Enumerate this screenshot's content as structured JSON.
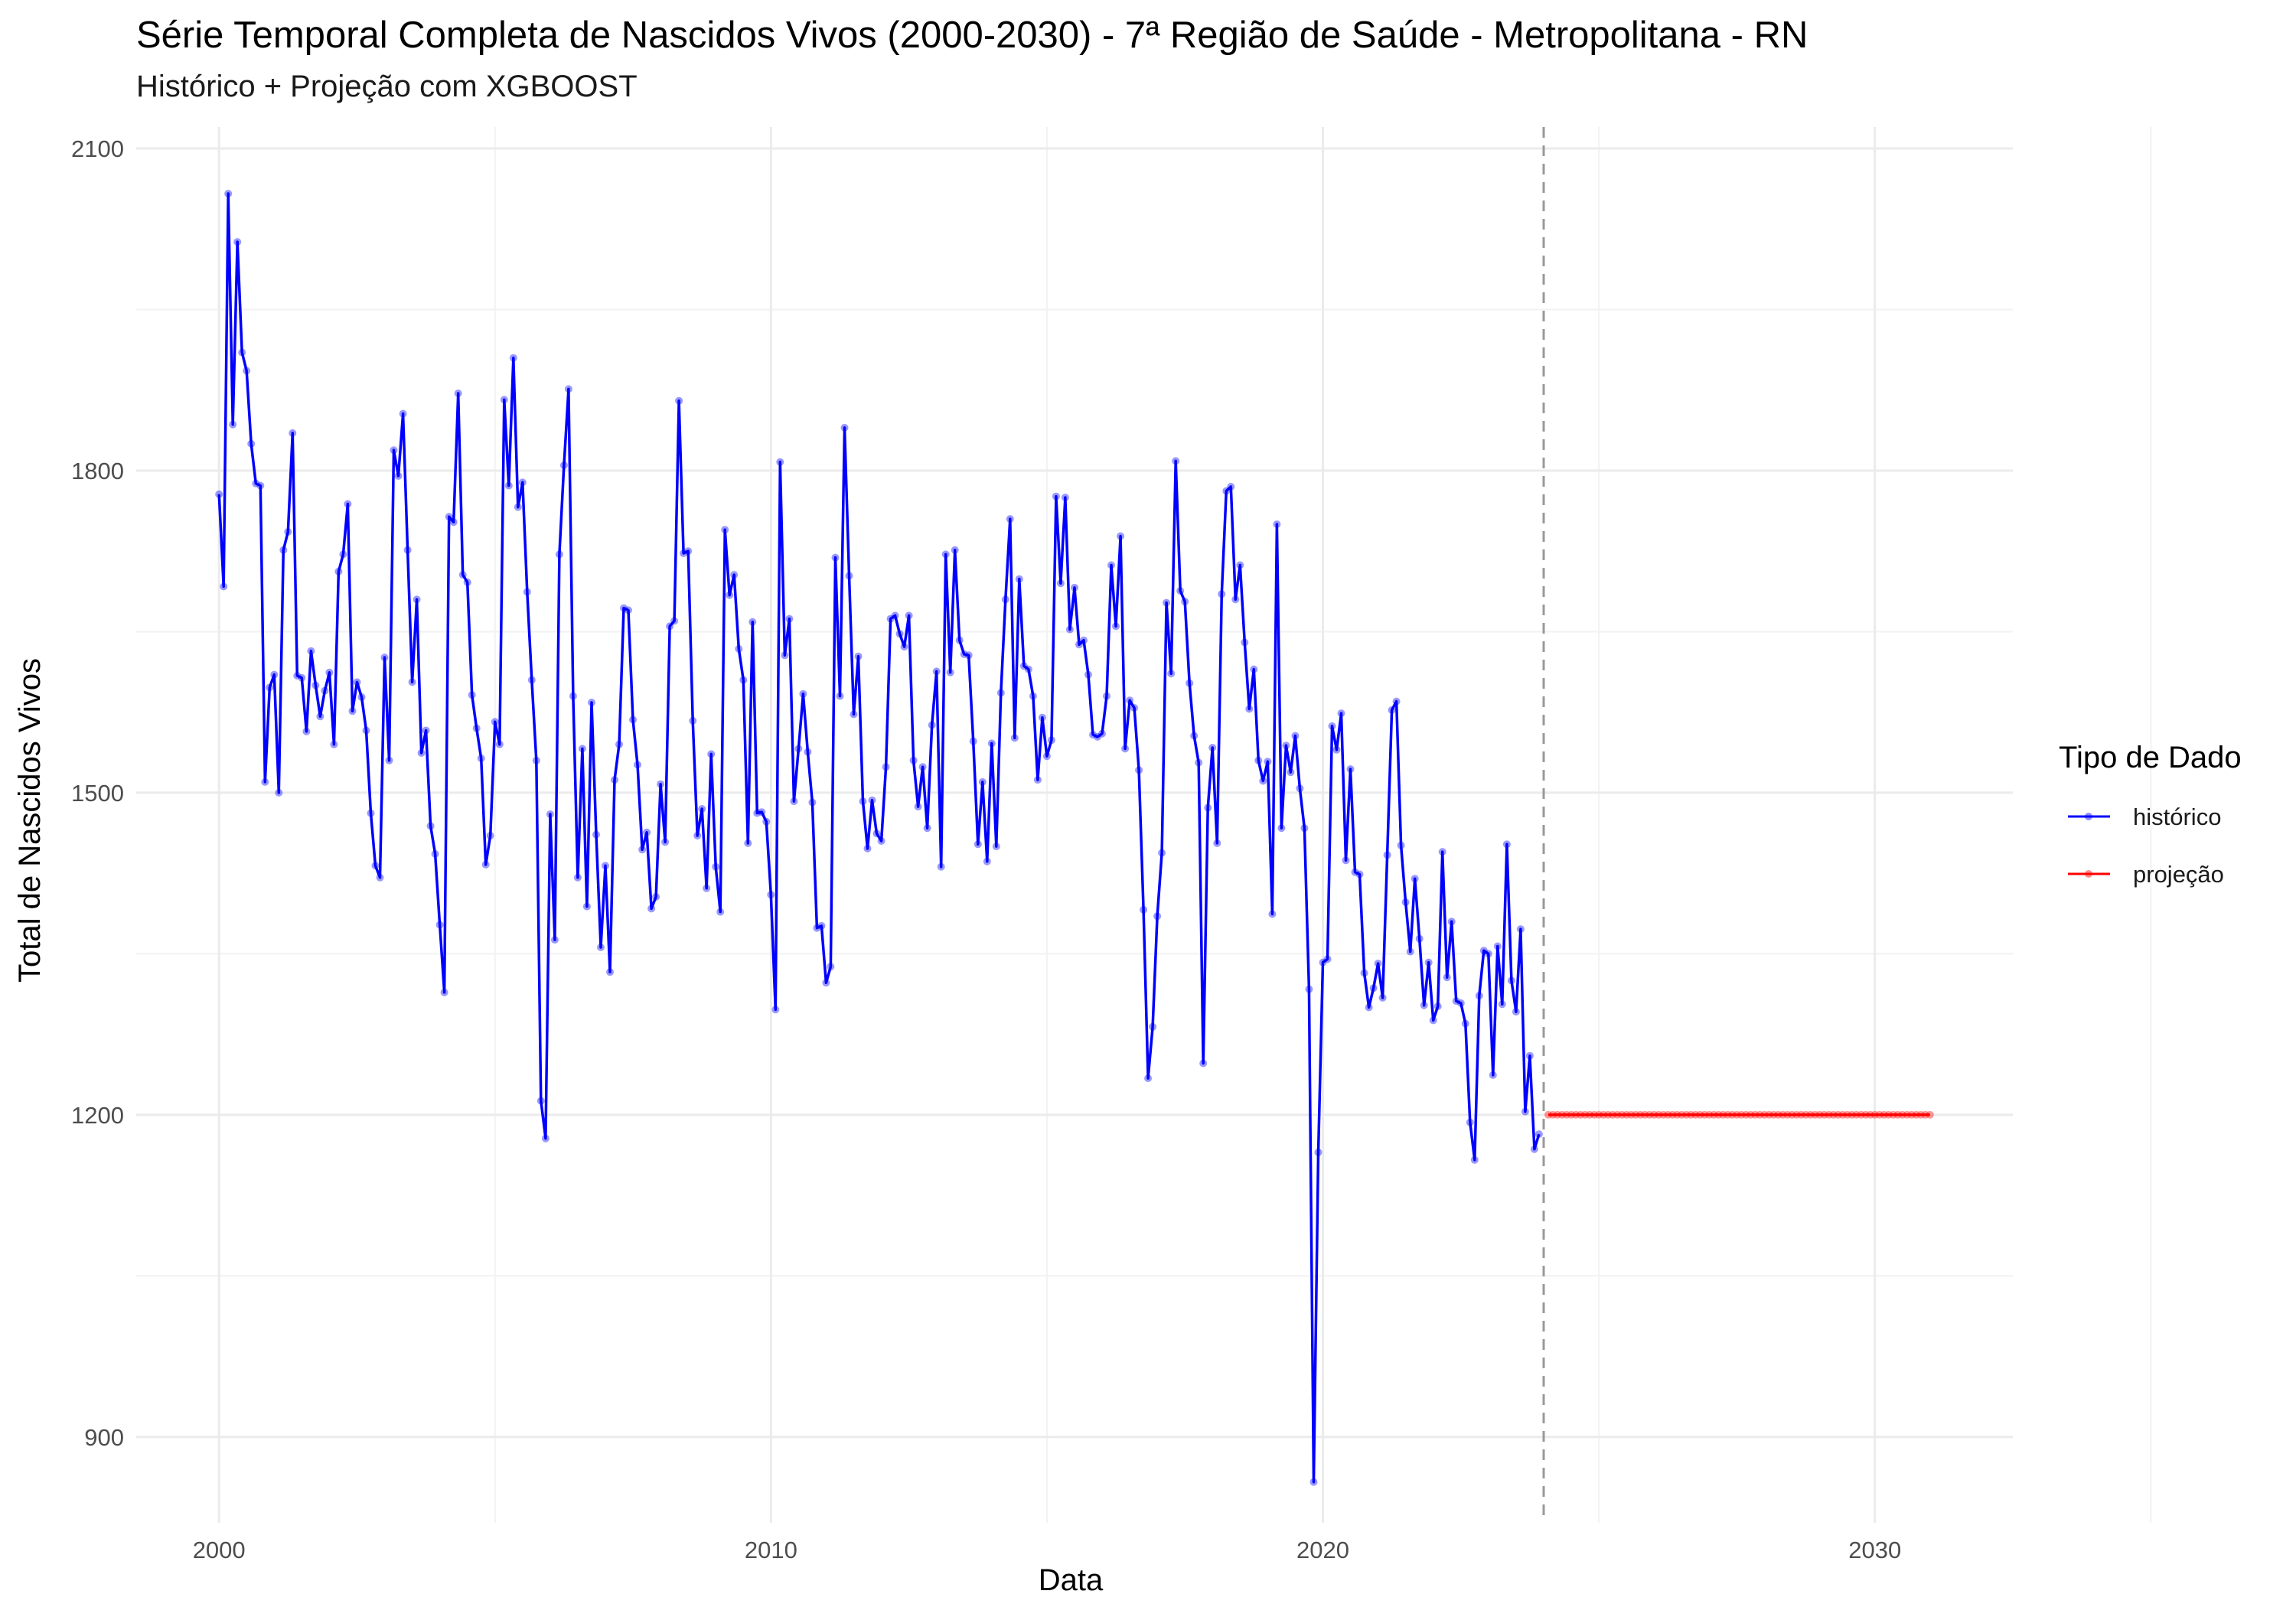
{
  "chart_data": {
    "type": "line",
    "title": "Série Temporal Completa de Nascidos Vivos (2000-2030) -  7ª Região de Saúde - Metropolitana - RN",
    "subtitle": "Histórico + Projeção com XGBOOST",
    "xlabel": "Data",
    "ylabel": "Total de Nascidos Vivos",
    "x_ticks": [
      "2000",
      "2010",
      "2020",
      "2030"
    ],
    "y_ticks": [
      "900",
      "1200",
      "1500",
      "1800",
      "2100"
    ],
    "xlim": [
      1998.5,
      2032.5
    ],
    "ylim": [
      820,
      2120
    ],
    "grid": true,
    "forecast_start": 2024.0,
    "legend": {
      "title": "Tipo de Dado",
      "placement": "right",
      "entries": [
        {
          "label": "histórico",
          "color": "#0000ff"
        },
        {
          "label": "projeção",
          "color": "#ff0000"
        }
      ]
    },
    "series": [
      {
        "name": "histórico",
        "color": "#0000ff",
        "start_year": 2000.0,
        "step": 0.08333,
        "values": [
          1778,
          1692,
          2058,
          1843,
          2013,
          1910,
          1893,
          1825,
          1788,
          1786,
          1510,
          1598,
          1610,
          1500,
          1726,
          1743,
          1835,
          1609,
          1607,
          1557,
          1632,
          1600,
          1571,
          1595,
          1612,
          1545,
          1706,
          1722,
          1769,
          1576,
          1603,
          1589,
          1558,
          1481,
          1432,
          1421,
          1626,
          1530,
          1819,
          1795,
          1853,
          1726,
          1603,
          1680,
          1537,
          1558,
          1469,
          1443,
          1377,
          1314,
          1757,
          1752,
          1872,
          1703,
          1696,
          1591,
          1560,
          1532,
          1433,
          1460,
          1566,
          1545,
          1866,
          1786,
          1905,
          1766,
          1789,
          1687,
          1605,
          1530,
          1213,
          1178,
          1480,
          1363,
          1722,
          1805,
          1876,
          1590,
          1421,
          1541,
          1394,
          1584,
          1461,
          1356,
          1432,
          1333,
          1512,
          1545,
          1672,
          1670,
          1568,
          1526,
          1447,
          1463,
          1392,
          1403,
          1508,
          1454,
          1655,
          1660,
          1865,
          1723,
          1725,
          1567,
          1460,
          1485,
          1411,
          1536,
          1431,
          1389,
          1745,
          1684,
          1703,
          1634,
          1605,
          1453,
          1659,
          1481,
          1482,
          1473,
          1405,
          1298,
          1808,
          1628,
          1662,
          1492,
          1541,
          1592,
          1538,
          1491,
          1374,
          1376,
          1323,
          1338,
          1719,
          1590,
          1840,
          1702,
          1573,
          1627,
          1492,
          1448,
          1493,
          1462,
          1455,
          1524,
          1662,
          1665,
          1648,
          1636,
          1665,
          1530,
          1487,
          1524,
          1467,
          1563,
          1613,
          1431,
          1722,
          1612,
          1726,
          1642,
          1629,
          1628,
          1548,
          1452,
          1510,
          1436,
          1546,
          1450,
          1593,
          1680,
          1755,
          1551,
          1699,
          1618,
          1615,
          1590,
          1512,
          1570,
          1534,
          1549,
          1776,
          1695,
          1775,
          1652,
          1691,
          1638,
          1642,
          1610,
          1554,
          1552,
          1555,
          1590,
          1712,
          1655,
          1739,
          1541,
          1586,
          1579,
          1521,
          1391,
          1234,
          1282,
          1385,
          1444,
          1677,
          1611,
          1809,
          1688,
          1678,
          1602,
          1553,
          1528,
          1248,
          1486,
          1542,
          1453,
          1685,
          1781,
          1785,
          1680,
          1712,
          1640,
          1578,
          1615,
          1530,
          1511,
          1529,
          1387,
          1750,
          1467,
          1544,
          1519,
          1553,
          1504,
          1467,
          1317,
          858,
          1165,
          1342,
          1345,
          1562,
          1540,
          1574,
          1437,
          1522,
          1426,
          1424,
          1332,
          1300,
          1318,
          1341,
          1309,
          1442,
          1577,
          1585,
          1451,
          1398,
          1352,
          1420,
          1364,
          1302,
          1342,
          1288,
          1301,
          1445,
          1328,
          1380,
          1306,
          1304,
          1285,
          1193,
          1158,
          1311,
          1353,
          1350,
          1237,
          1357,
          1303,
          1452,
          1325,
          1296,
          1373,
          1203,
          1255,
          1168,
          1182
        ]
      },
      {
        "name": "projeção",
        "color": "#ff0000",
        "start_year": 2024.0833,
        "step": 0.08333,
        "values": [
          1200,
          1200,
          1200,
          1200,
          1200,
          1200,
          1200,
          1200,
          1200,
          1200,
          1200,
          1200,
          1200,
          1200,
          1200,
          1200,
          1200,
          1200,
          1200,
          1200,
          1200,
          1200,
          1200,
          1200,
          1200,
          1200,
          1200,
          1200,
          1200,
          1200,
          1200,
          1200,
          1200,
          1200,
          1200,
          1200,
          1200,
          1200,
          1200,
          1200,
          1200,
          1200,
          1200,
          1200,
          1200,
          1200,
          1200,
          1200,
          1200,
          1200,
          1200,
          1200,
          1200,
          1200,
          1200,
          1200,
          1200,
          1200,
          1200,
          1200,
          1200,
          1200,
          1200,
          1200,
          1200,
          1200,
          1200,
          1200,
          1200,
          1200,
          1200,
          1200,
          1200,
          1200,
          1200,
          1200,
          1200,
          1200,
          1200,
          1200,
          1200,
          1200,
          1200,
          1200
        ]
      }
    ]
  }
}
